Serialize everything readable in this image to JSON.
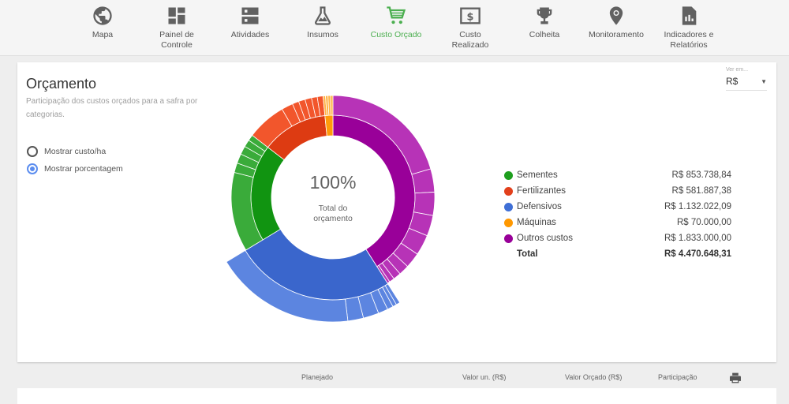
{
  "nav": {
    "items": [
      {
        "label": "Mapa",
        "icon": "globe-icon",
        "active": false
      },
      {
        "label": "Painel de Controle",
        "icon": "dashboard-icon",
        "active": false
      },
      {
        "label": "Atividades",
        "icon": "server-list-icon",
        "active": false
      },
      {
        "label": "Insumos",
        "icon": "flask-icon",
        "active": false
      },
      {
        "label": "Custo Orçado",
        "icon": "shopping-cart-icon",
        "active": true
      },
      {
        "label": "Custo Realizado",
        "icon": "money-icon",
        "active": false
      },
      {
        "label": "Colheita",
        "icon": "trophy-icon",
        "active": false
      },
      {
        "label": "Monitoramento",
        "icon": "bug-location-icon",
        "active": false
      },
      {
        "label": "Indicadores e Relatórios",
        "icon": "report-chart-icon",
        "active": false
      }
    ],
    "labels": {
      "mapa": "Mapa",
      "painel_1": "Painel de",
      "painel_2": "Controle",
      "atividades": "Atividades",
      "insumos": "Insumos",
      "custo_orcado": "Custo Orçado",
      "custo_realizado_1": "Custo",
      "custo_realizado_2": "Realizado",
      "colheita": "Colheita",
      "monitoramento": "Monitoramento",
      "indicadores_1": "Indicadores e",
      "indicadores_2": "Relatórios"
    },
    "active_color": "#4caf50",
    "icon_color": "#616161"
  },
  "card": {
    "title": "Orçamento",
    "subtitle": "Participação dos custos orçados para a safra por categorias.",
    "options": [
      {
        "label": "Mostrar custo/ha",
        "checked": false
      },
      {
        "label": "Mostrar porcentagem",
        "checked": true
      }
    ],
    "view_select": {
      "caption": "Ver em...",
      "value": "R$"
    }
  },
  "chart_center": {
    "value": "100%",
    "label_1": "Total do",
    "label_2": "orçamento"
  },
  "legend": {
    "rows": [
      {
        "name": "Sementes",
        "value": "R$ 853.738,84",
        "color": "#1e9e1e"
      },
      {
        "name": "Fertilizantes",
        "value": "R$ 581.887,38",
        "color": "#e2401c"
      },
      {
        "name": "Defensivos",
        "value": "R$ 1.132.022,09",
        "color": "#3f6fd6"
      },
      {
        "name": "Máquinas",
        "value": "R$ 70.000,00",
        "color": "#ff9800"
      },
      {
        "name": "Outros custos",
        "value": "R$ 1.833.000,00",
        "color": "#980098"
      }
    ],
    "total": {
      "name": "Total",
      "value": "R$ 4.470.648,31"
    }
  },
  "table_header": {
    "planejado": "Planejado",
    "valor_un": "Valor un. (R$)",
    "valor_orcado": "Valor Orçado (R$)",
    "participacao": "Participação",
    "print_icon": "printer-icon"
  },
  "chart_data": {
    "type": "pie",
    "subtype": "sunburst",
    "title": "Orçamento",
    "subtitle": "Participação dos custos orçados para a safra por categorias.",
    "center_text": "100% Total do orçamento",
    "categories": [
      "Outros custos",
      "Defensivos",
      "Sementes",
      "Fertilizantes",
      "Máquinas"
    ],
    "values": [
      1833000.0,
      1132022.09,
      853738.84,
      581887.38,
      70000.0
    ],
    "percent": [
      41.0,
      25.32,
      19.1,
      13.02,
      1.57
    ],
    "colors": [
      "#980098",
      "#3366cc",
      "#109618",
      "#dc3912",
      "#ff9900"
    ],
    "total": 4470648.31,
    "currency": "R$",
    "highlighted_category": "Defensivos",
    "legend_position": "right"
  }
}
